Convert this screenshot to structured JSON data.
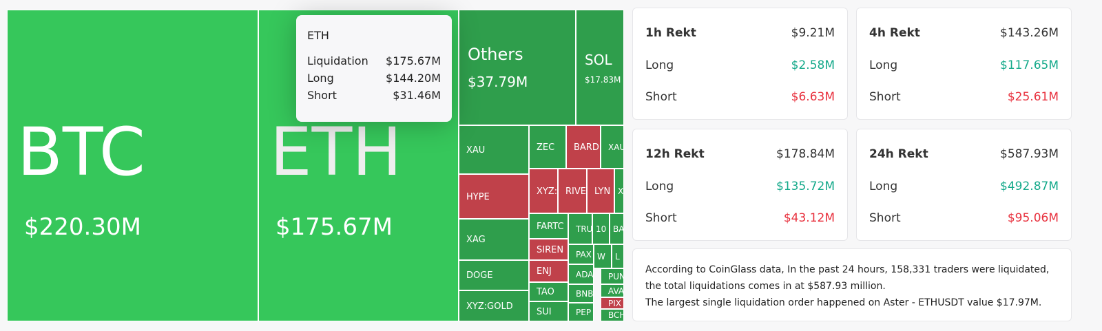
{
  "treemap": {
    "tiles": [
      {
        "label": "BTC",
        "value": "$220.30M",
        "color": "#36c75b"
      },
      {
        "label": "ETH",
        "value": "$175.67M",
        "color": "#36c75b"
      },
      {
        "label": "Others",
        "value": "$37.79M",
        "color": "#2f9e4c"
      },
      {
        "label": "SOL",
        "value": "$17.83M",
        "color": "#2f9e4c"
      },
      {
        "label": "XAU",
        "color": "#2f9e4c"
      },
      {
        "label": "HYPE",
        "color": "#c0414a"
      },
      {
        "label": "XAG",
        "color": "#2f9e4c"
      },
      {
        "label": "DOGE",
        "color": "#2f9e4c"
      },
      {
        "label": "XYZ:GOLD",
        "color": "#2f9e4c"
      },
      {
        "label": "ZEC",
        "color": "#2f9e4c"
      },
      {
        "label": "BARD",
        "color": "#c0414a"
      },
      {
        "label": "XAU",
        "color": "#2f9e4c"
      },
      {
        "label": "XYZ:",
        "color": "#c0414a"
      },
      {
        "label": "RIVE",
        "color": "#c0414a"
      },
      {
        "label": "LYN",
        "color": "#c0414a"
      },
      {
        "label": "X",
        "color": "#2f9e4c"
      },
      {
        "label": "FARTC",
        "color": "#2f9e4c"
      },
      {
        "label": "SIREN",
        "color": "#c0414a"
      },
      {
        "label": "ENJ",
        "color": "#c0414a"
      },
      {
        "label": "TAO",
        "color": "#2f9e4c"
      },
      {
        "label": "SUI",
        "color": "#2f9e4c"
      },
      {
        "label": "TRU",
        "color": "#2f9e4c"
      },
      {
        "label": "10",
        "color": "#2f9e4c"
      },
      {
        "label": "BA",
        "color": "#2f9e4c"
      },
      {
        "label": "PAX",
        "color": "#2f9e4c"
      },
      {
        "label": "W",
        "color": "#2f9e4c"
      },
      {
        "label": "L",
        "color": "#2f9e4c"
      },
      {
        "label": "ADA",
        "color": "#2f9e4c"
      },
      {
        "label": "PUN",
        "color": "#2f9e4c"
      },
      {
        "label": "BNB",
        "color": "#2f9e4c"
      },
      {
        "label": "AVA",
        "color": "#2f9e4c"
      },
      {
        "label": "PIX",
        "color": "#c0414a"
      },
      {
        "label": "PEP",
        "color": "#2f9e4c"
      },
      {
        "label": "BCH",
        "color": "#2f9e4c"
      }
    ],
    "tooltip": {
      "title": "ETH",
      "rows": [
        [
          "Liquidation",
          "$175.67M"
        ],
        [
          "Long",
          "$144.20M"
        ],
        [
          "Short",
          "$31.46M"
        ]
      ]
    }
  },
  "cards": [
    {
      "title": "1h Rekt",
      "total": "$9.21M",
      "rows": [
        [
          "Long",
          "$2.58M"
        ],
        [
          "Short",
          "$6.63M"
        ]
      ]
    },
    {
      "title": "4h Rekt",
      "total": "$143.26M",
      "rows": [
        [
          "Long",
          "$117.65M"
        ],
        [
          "Short",
          "$25.61M"
        ]
      ]
    },
    {
      "title": "12h Rekt",
      "total": "$178.84M",
      "rows": [
        [
          "Long",
          "$135.72M"
        ],
        [
          "Short",
          "$43.12M"
        ]
      ]
    },
    {
      "title": "24h Rekt",
      "total": "$587.93M",
      "rows": [
        [
          "Long",
          "$492.87M"
        ],
        [
          "Short",
          "$95.06M"
        ]
      ]
    }
  ],
  "summary": [
    "According to CoinGlass data, In the past 24 hours, 158,331 traders were liquidated, the total liquidations comes in at $587.93 million.",
    "The largest single liquidation order happened on Aster - ETHUSDT value $17.97M."
  ]
}
